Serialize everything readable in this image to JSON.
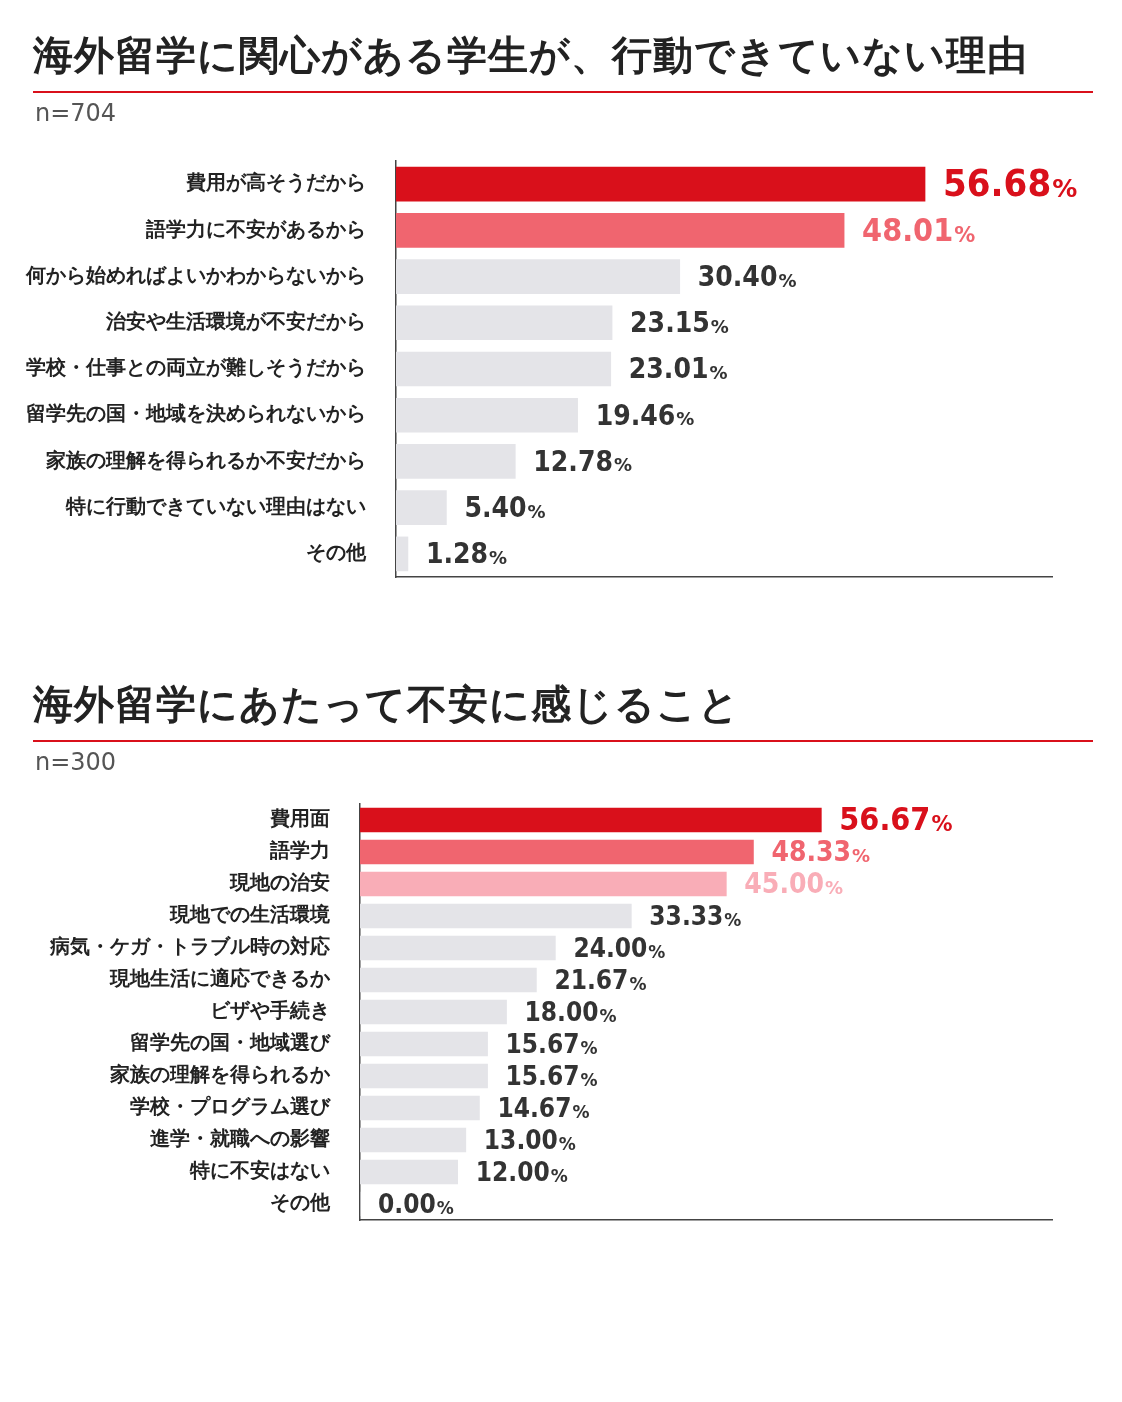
{
  "chart_data": [
    {
      "type": "bar",
      "orientation": "horizontal",
      "title": "海外留学に関心がある学生が、行動できていない理由",
      "subtitle": "n=704",
      "categories": [
        "費用が高そうだから",
        "語学力に不安があるから",
        "何から始めればよいかわからないから",
        "治安や生活環境が不安だから",
        "学校・仕事との両立が難しそうだから",
        "留学先の国・地域を決められないから",
        "家族の理解を得られるか不安だから",
        "特に行動できていない理由はない",
        "その他"
      ],
      "values": [
        56.68,
        48.01,
        30.4,
        23.15,
        23.01,
        19.46,
        12.78,
        5.4,
        1.28
      ],
      "colors": [
        "#d9101b",
        "#f0656f",
        "#e4e4e8",
        "#e4e4e8",
        "#e4e4e8",
        "#e4e4e8",
        "#e4e4e8",
        "#e4e4e8",
        "#e4e4e8"
      ],
      "value_labels": [
        "56.68%",
        "48.01%",
        "30.40%",
        "23.15%",
        "23.01%",
        "19.46%",
        "12.78%",
        "5.40%",
        "1.28%"
      ],
      "tick_labels": "y",
      "grid": false,
      "legend": false
    },
    {
      "type": "bar",
      "orientation": "horizontal",
      "title": "海外留学にあたって不安に感じること",
      "subtitle": "n=300",
      "categories": [
        "費用面",
        "語学力",
        "現地の治安",
        "現地での生活環境",
        "病気・ケガ・トラブル時の対応",
        "現地生活に適応できるか",
        "ビザや手続き",
        "留学先の国・地域選び",
        "家族の理解を得られるか",
        "学校・プログラム選び",
        "進学・就職への影響",
        "特に不安はない",
        "その他"
      ],
      "values": [
        56.67,
        48.33,
        45.0,
        33.33,
        24.0,
        21.67,
        18.0,
        15.67,
        15.67,
        14.67,
        13.0,
        12.0,
        0.0
      ],
      "colors": [
        "#d9101b",
        "#f0656f",
        "#f9adb7",
        "#e4e4e8",
        "#e4e4e8",
        "#e4e4e8",
        "#e4e4e8",
        "#e4e4e8",
        "#e4e4e8",
        "#e4e4e8",
        "#e4e4e8",
        "#e4e4e8",
        "#e4e4e8"
      ],
      "value_labels": [
        "56.67%",
        "48.33%",
        "45.00%",
        "33.33%",
        "24.00%",
        "21.67%",
        "18.00%",
        "15.67%",
        "15.67%",
        "14.67%",
        "13.00%",
        "12.00%",
        "0.00%"
      ],
      "tick_labels": "y",
      "grid": false,
      "legend": false
    }
  ]
}
